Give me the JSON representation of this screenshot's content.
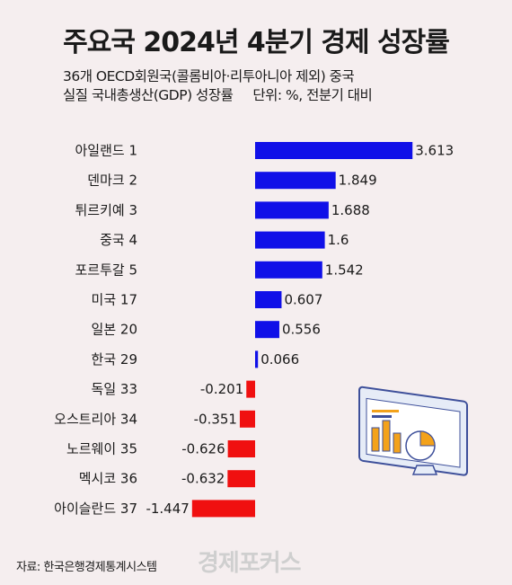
{
  "title": "주요국 2024년 4분기 경제 성장률",
  "subtitle_line1": "36개 OECD회원국(콜롬비아·리투아니아 제외) 중국",
  "subtitle_line2": "실질 국내총생산(GDP) 성장률",
  "unit": "단위: %, 전분기 대비",
  "source": "자료: 한국은행경제통계시스템",
  "watermark": "경제포커스",
  "colors": {
    "positive": "#1010e8",
    "negative": "#f01010",
    "background": "#f5eeef"
  },
  "illustration_icon": "monitor-chart-icon",
  "chart_data": {
    "type": "bar",
    "orientation": "horizontal",
    "title": "주요국 2024년 4분기 경제 성장률",
    "categories": [
      "아일랜드 1",
      "덴마크 2",
      "튀르키예 3",
      "중국 4",
      "포르투갈 5",
      "미국 17",
      "일본 20",
      "한국 29",
      "독일 33",
      "오스트리아 34",
      "노르웨이 35",
      "멕시코 36",
      "아이슬란드 37"
    ],
    "values": [
      3.613,
      1.849,
      1.688,
      1.6,
      1.542,
      0.607,
      0.556,
      0.066,
      -0.201,
      -0.351,
      -0.626,
      -0.632,
      -1.447
    ],
    "value_labels": [
      "3.613",
      "1.849",
      "1.688",
      "1.6",
      "1.542",
      "0.607",
      "0.556",
      "0.066",
      "-0.201",
      "-0.351",
      "-0.626",
      "-0.632",
      "-1.447"
    ],
    "xlabel": "",
    "ylabel": "",
    "grid": false,
    "legend": "none"
  }
}
